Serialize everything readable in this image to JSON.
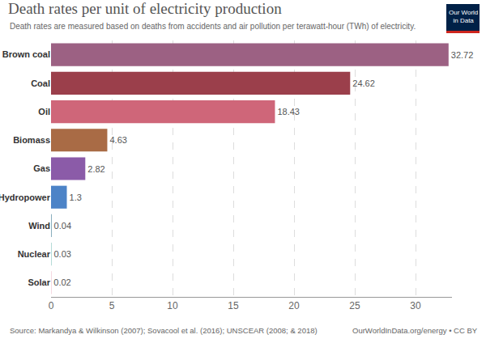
{
  "chart_data": {
    "type": "bar",
    "orientation": "horizontal",
    "title": "Death rates per unit of electricity production",
    "subtitle": "Death rates are measured based on deaths from accidents and air pollution per terawatt-hour (TWh) of electricity.",
    "source": "Source: Markandya & Wilkinson (2007); Sovacool et al. (2016); UNSCEAR (2008; & 2018)",
    "credit": "OurWorldInData.org/energy • CC BY",
    "logo": [
      "Our World",
      "in Data"
    ],
    "categories": [
      "Brown coal",
      "Coal",
      "Oil",
      "Biomass",
      "Gas",
      "Hydropower",
      "Wind",
      "Nuclear",
      "Solar"
    ],
    "values": [
      32.72,
      24.62,
      18.43,
      4.63,
      2.82,
      1.3,
      0.04,
      0.03,
      0.02
    ],
    "colors": [
      "#9c6183",
      "#9b3f4b",
      "#cf6679",
      "#a96b45",
      "#8b5ba8",
      "#4c83c7",
      "#3b7a93",
      "#5bb0a6",
      "#dd7f9a"
    ],
    "xlim": [
      0,
      33
    ],
    "xticks": [
      0,
      5,
      10,
      15,
      20,
      25,
      30
    ],
    "grid": true,
    "data_labels": true
  }
}
